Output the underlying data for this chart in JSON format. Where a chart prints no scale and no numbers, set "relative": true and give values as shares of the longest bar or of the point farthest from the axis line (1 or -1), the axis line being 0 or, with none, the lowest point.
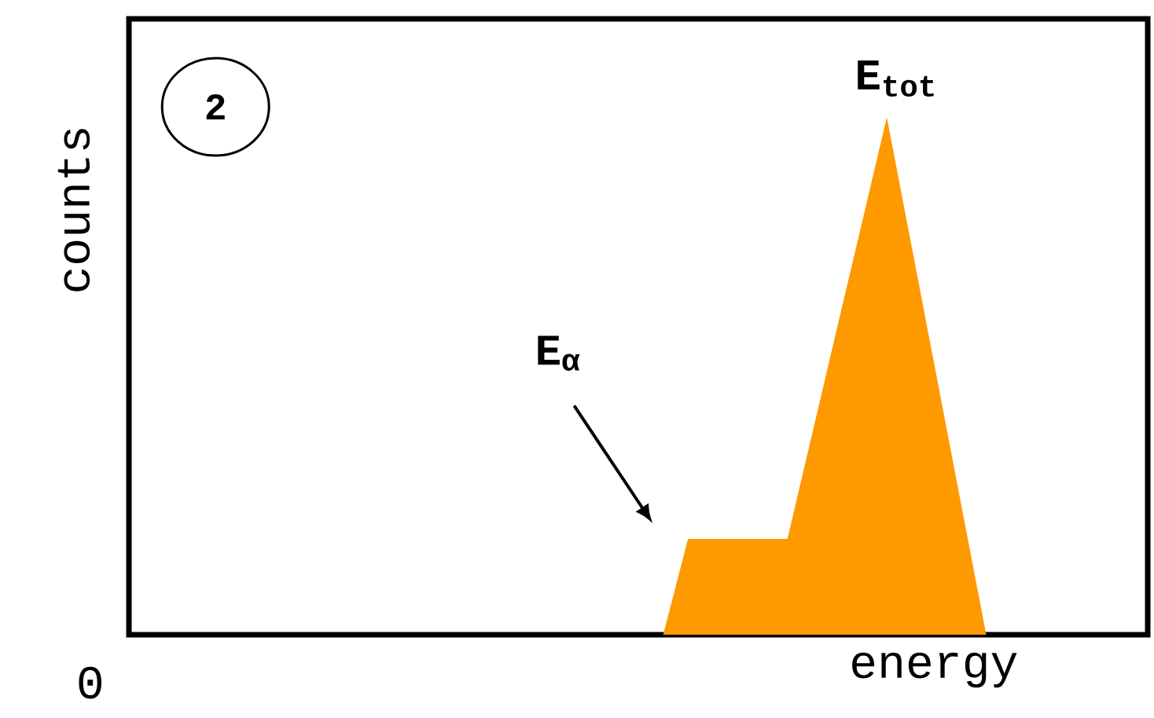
{
  "chart_data": {
    "type": "area",
    "relative": true,
    "xlabel": "energy",
    "categories": [
      null,
      null,
      null,
      null,
      null,
      null,
      null,
      null,
      null,
      null,
      null,
      null,
      null,
      null
    ],
    "values": [
      0,
      0.185,
      0.185,
      0.185,
      0.185,
      0.185,
      0.389,
      0.593,
      0.796,
      1,
      0.75,
      0.5,
      0.25,
      0
    ],
    "color": "#ff9900",
    "tick_labels": false,
    "annotations": [
      "**E$_{α}$**",
      "**E$_{tot}$**",
      "**2**",
      "0",
      "counts"
    ]
  }
}
